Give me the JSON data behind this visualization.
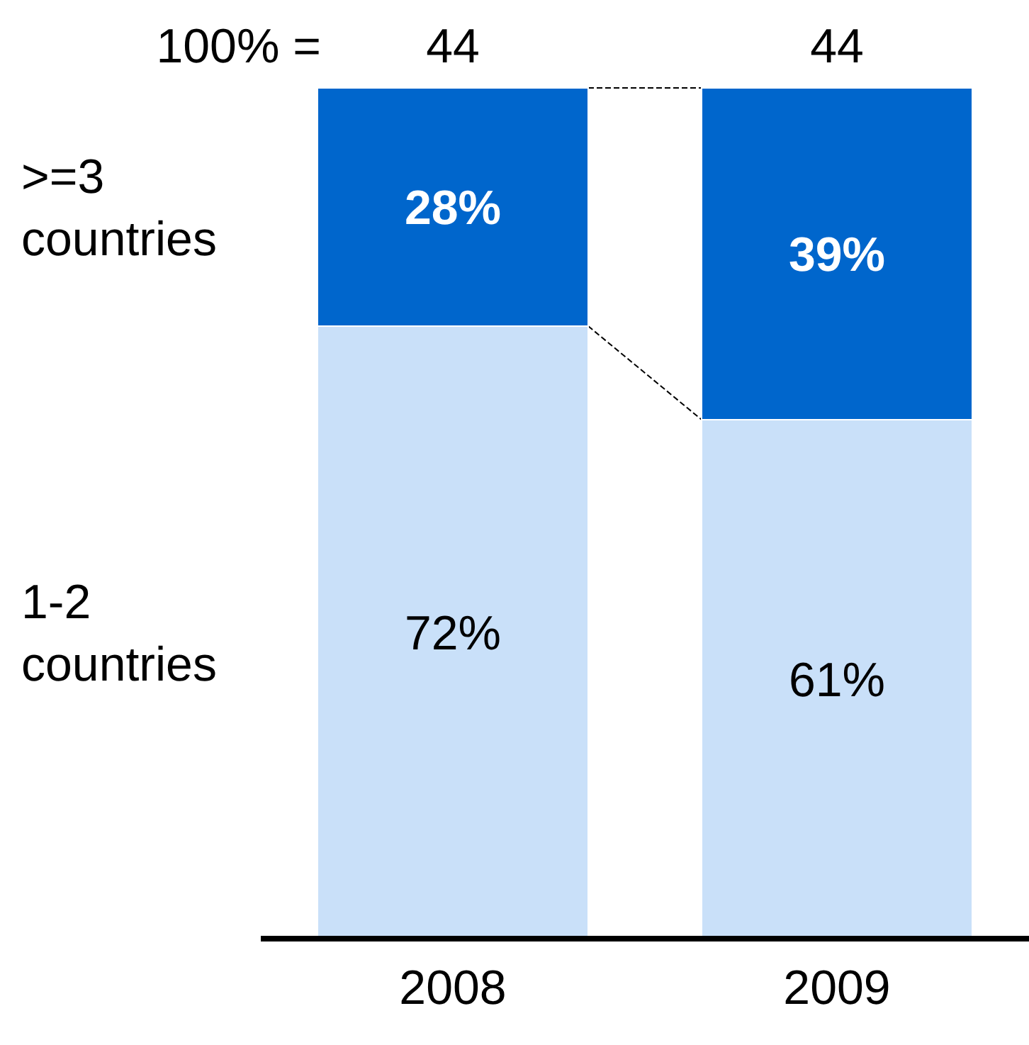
{
  "chart_data": {
    "type": "bar",
    "stacked": true,
    "categories": [
      "2008",
      "2009"
    ],
    "series": [
      {
        "name": "1-2 countries",
        "color": "#c9e0f9",
        "values": [
          72,
          61
        ],
        "value_labels": [
          "72%",
          "61%"
        ]
      },
      {
        "name": ">=3 countries",
        "color": "#0066cc",
        "values": [
          28,
          39
        ],
        "value_labels": [
          "28%",
          "39%"
        ]
      }
    ],
    "annotations": [
      "100% =",
      "44",
      "44"
    ]
  }
}
